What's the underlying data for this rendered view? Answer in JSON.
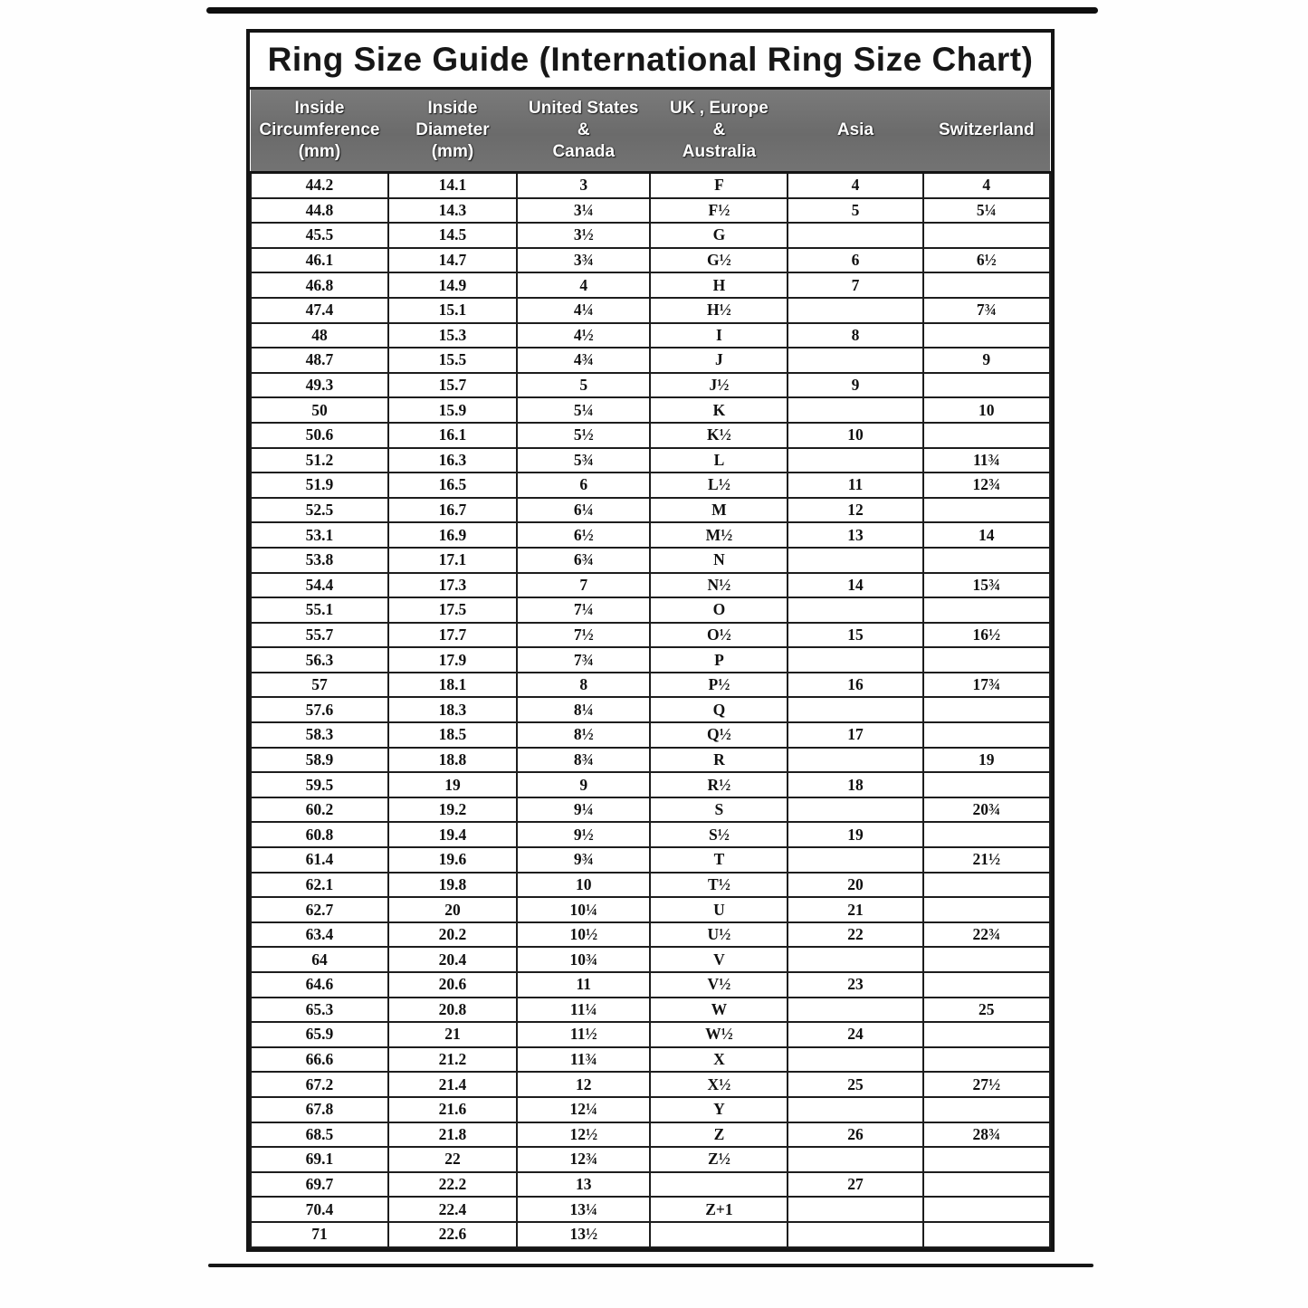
{
  "page": {
    "title": "Ring Size Guide (International Ring Size Chart)"
  },
  "colors": {
    "header_bg": "#707070",
    "header_text": "#ffffff",
    "border": "#141414",
    "body_text": "#101010",
    "page_bg": "#ffffff"
  },
  "table": {
    "headers": [
      "Inside\nCircumference\n(mm)",
      "Inside\nDiameter\n(mm)",
      "United States\n&\nCanada",
      "UK , Europe\n&\nAustralia",
      "Asia",
      "Switzerland"
    ],
    "rows": [
      [
        "44.2",
        "14.1",
        "3",
        "F",
        "4",
        "4"
      ],
      [
        "44.8",
        "14.3",
        "3¼",
        "F½",
        "5",
        "5¼"
      ],
      [
        "45.5",
        "14.5",
        "3½",
        "G",
        "",
        ""
      ],
      [
        "46.1",
        "14.7",
        "3¾",
        "G½",
        "6",
        "6½"
      ],
      [
        "46.8",
        "14.9",
        "4",
        "H",
        "7",
        ""
      ],
      [
        "47.4",
        "15.1",
        "4¼",
        "H½",
        "",
        "7¾"
      ],
      [
        "48",
        "15.3",
        "4½",
        "I",
        "8",
        ""
      ],
      [
        "48.7",
        "15.5",
        "4¾",
        "J",
        "",
        "9"
      ],
      [
        "49.3",
        "15.7",
        "5",
        "J½",
        "9",
        ""
      ],
      [
        "50",
        "15.9",
        "5¼",
        "K",
        "",
        "10"
      ],
      [
        "50.6",
        "16.1",
        "5½",
        "K½",
        "10",
        ""
      ],
      [
        "51.2",
        "16.3",
        "5¾",
        "L",
        "",
        "11¾"
      ],
      [
        "51.9",
        "16.5",
        "6",
        "L½",
        "11",
        "12¾"
      ],
      [
        "52.5",
        "16.7",
        "6¼",
        "M",
        "12",
        ""
      ],
      [
        "53.1",
        "16.9",
        "6½",
        "M½",
        "13",
        "14"
      ],
      [
        "53.8",
        "17.1",
        "6¾",
        "N",
        "",
        ""
      ],
      [
        "54.4",
        "17.3",
        "7",
        "N½",
        "14",
        "15¾"
      ],
      [
        "55.1",
        "17.5",
        "7¼",
        "O",
        "",
        ""
      ],
      [
        "55.7",
        "17.7",
        "7½",
        "O½",
        "15",
        "16½"
      ],
      [
        "56.3",
        "17.9",
        "7¾",
        "P",
        "",
        ""
      ],
      [
        "57",
        "18.1",
        "8",
        "P½",
        "16",
        "17¾"
      ],
      [
        "57.6",
        "18.3",
        "8¼",
        "Q",
        "",
        ""
      ],
      [
        "58.3",
        "18.5",
        "8½",
        "Q½",
        "17",
        ""
      ],
      [
        "58.9",
        "18.8",
        "8¾",
        "R",
        "",
        "19"
      ],
      [
        "59.5",
        "19",
        "9",
        "R½",
        "18",
        ""
      ],
      [
        "60.2",
        "19.2",
        "9¼",
        "S",
        "",
        "20¾"
      ],
      [
        "60.8",
        "19.4",
        "9½",
        "S½",
        "19",
        ""
      ],
      [
        "61.4",
        "19.6",
        "9¾",
        "T",
        "",
        "21½"
      ],
      [
        "62.1",
        "19.8",
        "10",
        "T½",
        "20",
        ""
      ],
      [
        "62.7",
        "20",
        "10¼",
        "U",
        "21",
        ""
      ],
      [
        "63.4",
        "20.2",
        "10½",
        "U½",
        "22",
        "22¾"
      ],
      [
        "64",
        "20.4",
        "10¾",
        "V",
        "",
        ""
      ],
      [
        "64.6",
        "20.6",
        "11",
        "V½",
        "23",
        ""
      ],
      [
        "65.3",
        "20.8",
        "11¼",
        "W",
        "",
        "25"
      ],
      [
        "65.9",
        "21",
        "11½",
        "W½",
        "24",
        ""
      ],
      [
        "66.6",
        "21.2",
        "11¾",
        "X",
        "",
        ""
      ],
      [
        "67.2",
        "21.4",
        "12",
        "X½",
        "25",
        "27½"
      ],
      [
        "67.8",
        "21.6",
        "12¼",
        "Y",
        "",
        ""
      ],
      [
        "68.5",
        "21.8",
        "12½",
        "Z",
        "26",
        "28¾"
      ],
      [
        "69.1",
        "22",
        "12¾",
        "Z½",
        "",
        ""
      ],
      [
        "69.7",
        "22.2",
        "13",
        "",
        "27",
        ""
      ],
      [
        "70.4",
        "22.4",
        "13¼",
        "Z+1",
        "",
        ""
      ],
      [
        "71",
        "22.6",
        "13½",
        "",
        "",
        ""
      ]
    ]
  }
}
